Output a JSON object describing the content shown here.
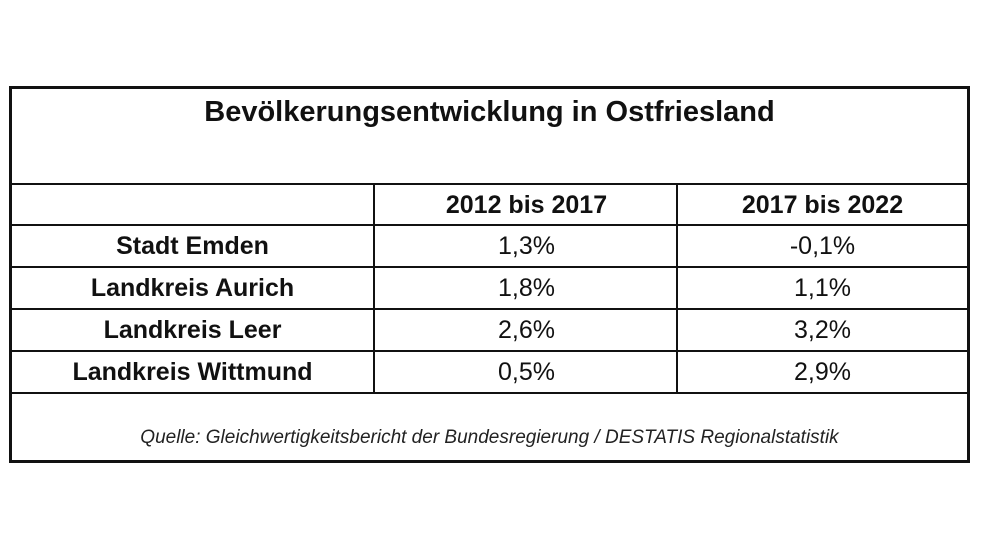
{
  "table": {
    "title": "Bevölkerungsentwicklung in Ostfriesland",
    "columns": [
      "2012 bis 2017",
      "2017 bis 2022"
    ],
    "rows": [
      {
        "label": "Stadt Emden",
        "values": [
          "1,3%",
          "-0,1%"
        ]
      },
      {
        "label": "Landkreis Aurich",
        "values": [
          "1,8%",
          "1,1%"
        ]
      },
      {
        "label": "Landkreis Leer",
        "values": [
          "2,6%",
          "3,2%"
        ]
      },
      {
        "label": "Landkreis Wittmund",
        "values": [
          "0,5%",
          "2,9%"
        ]
      }
    ],
    "source": "Quelle: Gleichwertigkeitsbericht der Bundesregierung / DESTATIS Regionalstatistik"
  }
}
